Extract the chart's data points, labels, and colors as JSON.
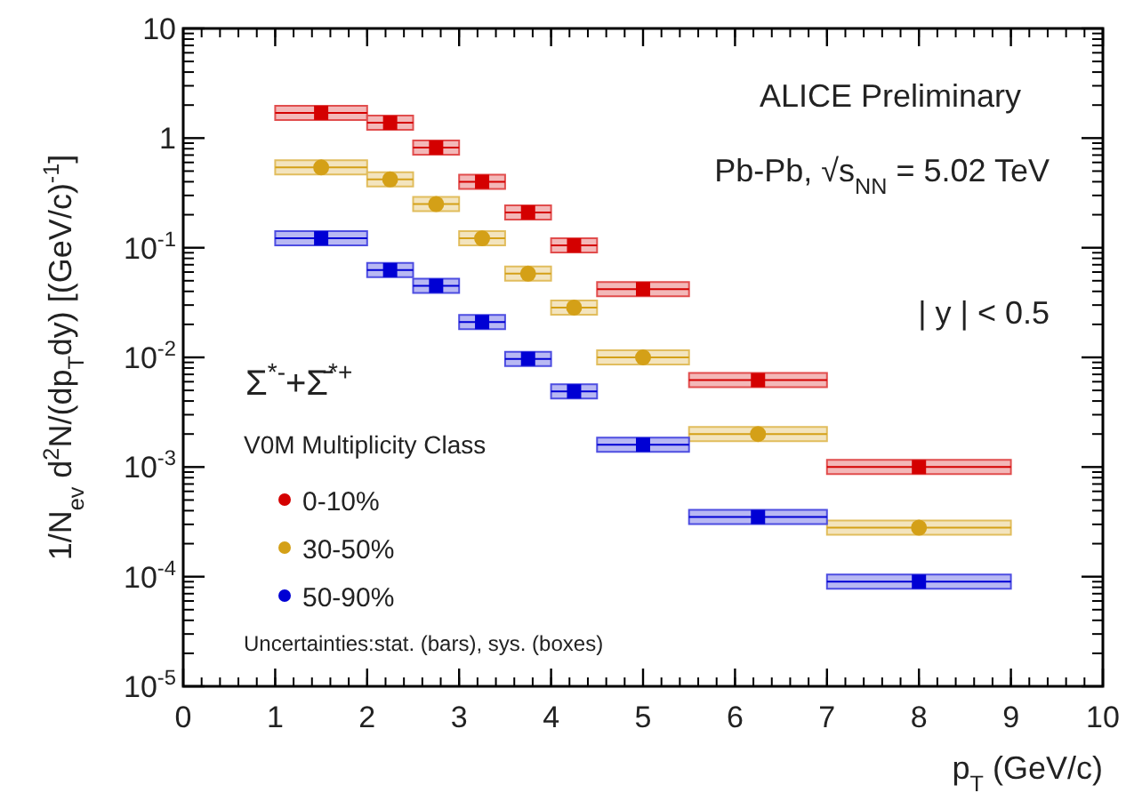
{
  "chart_data": {
    "type": "scatter",
    "xlabel": "p$_{T}$ (GeV/c)",
    "ylabel": "1/N$_{ev}$ d$^{2}$N/(dp$_{T}$dy) [(GeV/c)$^{-1}$]",
    "legend_title": "V0M Multiplicity Class",
    "legend": "bottom left",
    "log": "y",
    "series": [
      {
        "name": "0-10%",
        "color": "#d40000",
        "marker": "square",
        "x": [
          1.5,
          2.25,
          2.75,
          3.25,
          3.75,
          4.25,
          5,
          6.25,
          8
        ],
        "xerrors": [
          0.5,
          0.25,
          0.25,
          0.25,
          0.25,
          0.25,
          0.5,
          0.75,
          1
        ],
        "values": [
          1.7,
          1.38,
          0.82,
          0.4,
          0.21,
          0.105,
          0.042,
          0.0062,
          0.001
        ]
      },
      {
        "name": "30-50%",
        "color": "#d4a017",
        "marker": "circle",
        "x": [
          1.5,
          2.25,
          2.75,
          3.25,
          3.75,
          4.25,
          5,
          6.25,
          8
        ],
        "xerrors": [
          0.5,
          0.25,
          0.25,
          0.25,
          0.25,
          0.25,
          0.5,
          0.75,
          1
        ],
        "values": [
          0.54,
          0.42,
          0.25,
          0.122,
          0.058,
          0.0285,
          0.01,
          0.002,
          0.00028
        ]
      },
      {
        "name": "50-90%",
        "color": "#0000d4",
        "marker": "square",
        "x": [
          1.5,
          2.25,
          2.75,
          3.25,
          3.75,
          4.25,
          5,
          6.25,
          8
        ],
        "xerrors": [
          0.5,
          0.25,
          0.25,
          0.25,
          0.25,
          0.25,
          0.5,
          0.75,
          1
        ],
        "values": [
          0.122,
          0.0625,
          0.045,
          0.021,
          0.0097,
          0.0049,
          0.0016,
          0.00035,
          9e-05
        ]
      }
    ],
    "xlim": [
      0,
      10
    ],
    "xticks": [
      0,
      1,
      2,
      3,
      4,
      5,
      6,
      7,
      8,
      9,
      10
    ],
    "ylim": [
      1e-05,
      10
    ],
    "yticks": [
      {
        "value": 1e-05,
        "label": "10$^{-5}$"
      },
      {
        "value": 0.0001,
        "label": "10$^{-4}$"
      },
      {
        "value": 0.001,
        "label": "10$^{-3}$"
      },
      {
        "value": 0.01,
        "label": "10$^{-2}$"
      },
      {
        "value": 0.1,
        "label": "10$^{-1}$"
      },
      {
        "value": 1,
        "label": "1"
      },
      {
        "value": 10,
        "label": "10"
      }
    ],
    "grid": false,
    "annotations": [
      "ALICE Preliminary",
      "Pb-Pb, √s$_{NN}$ = 5.02 TeV",
      "| y | < 0.5",
      "Σ$^{*-}$+Σ̄$^{*+}$",
      "Uncertainties:stat. (bars), sys. (boxes)"
    ]
  }
}
